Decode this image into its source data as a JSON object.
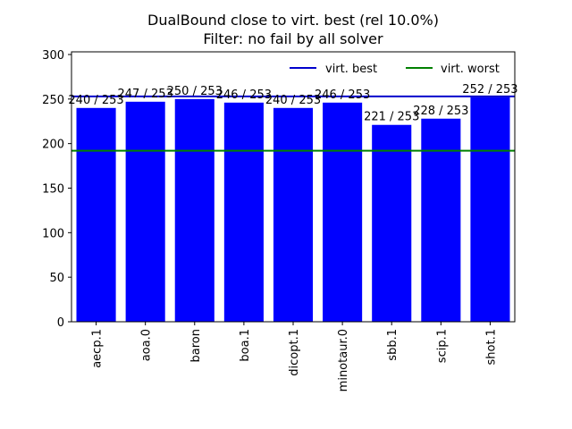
{
  "chart_data": {
    "type": "bar",
    "title": "DualBound close to virt. best (rel 10.0%)",
    "subtitle": "Filter: no fail by all solver",
    "xlabel": "",
    "ylabel": "",
    "categories": [
      "aecp.1",
      "aoa.0",
      "baron",
      "boa.1",
      "dicopt.1",
      "minotaur.0",
      "sbb.1",
      "scip.1",
      "shot.1"
    ],
    "values": [
      240,
      247,
      250,
      246,
      240,
      246,
      221,
      228,
      252
    ],
    "data_labels": [
      "240 / 253",
      "247 / 253",
      "250 / 253",
      "246 / 253",
      "240 / 253",
      "246 / 253",
      "221 / 253",
      "228 / 253",
      "252 / 253"
    ],
    "ylim": [
      0,
      303
    ],
    "yticks": [
      0,
      50,
      100,
      150,
      200,
      250,
      300
    ],
    "bar_color": "#0000ff",
    "reference_lines": [
      {
        "name": "virt. best",
        "value": 253,
        "color": "#0000cc"
      },
      {
        "name": "virt. worst",
        "value": 192,
        "color": "#008000"
      }
    ],
    "legend_position": "top-right",
    "grid": false
  }
}
